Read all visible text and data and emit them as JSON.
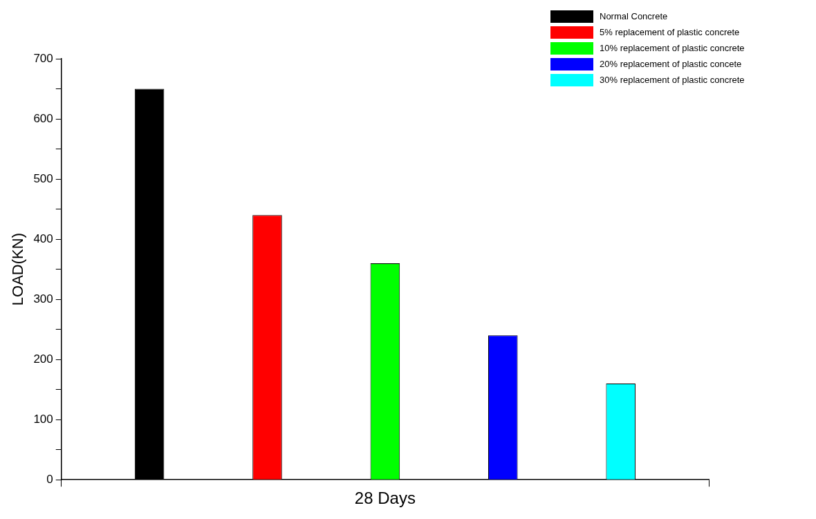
{
  "chart_data": {
    "type": "bar",
    "categories": [
      null
    ],
    "xlabel": "28 Days",
    "ylabel": "LOAD(KN)",
    "series": [
      {
        "name": "Normal Concrete",
        "color": "#000000",
        "values": [
          650
        ]
      },
      {
        "name": "5% replacement of plastic concrete",
        "color": "#ff0000",
        "values": [
          440
        ]
      },
      {
        "name": "10% replacement of plastic concrete",
        "color": "#00ff00",
        "values": [
          360
        ]
      },
      {
        "name": "20% replacement of plastic concete",
        "color": "#0000ff",
        "values": [
          240
        ]
      },
      {
        "name": "30% replacement of plastic concrete",
        "color": "#00ffff",
        "values": [
          160
        ]
      }
    ],
    "ylim": [
      0,
      700
    ],
    "yticks": [
      0,
      {
        "value": 50,
        "label": null
      },
      100,
      {
        "value": 150,
        "label": null
      },
      200,
      {
        "value": 250,
        "label": null
      },
      300,
      {
        "value": 350,
        "label": null
      },
      400,
      {
        "value": 450,
        "label": null
      },
      500,
      {
        "value": 550,
        "label": null
      },
      600,
      {
        "value": 650,
        "label": null
      },
      700
    ],
    "tick_labels": "y",
    "grid": false,
    "legend": "top right"
  }
}
